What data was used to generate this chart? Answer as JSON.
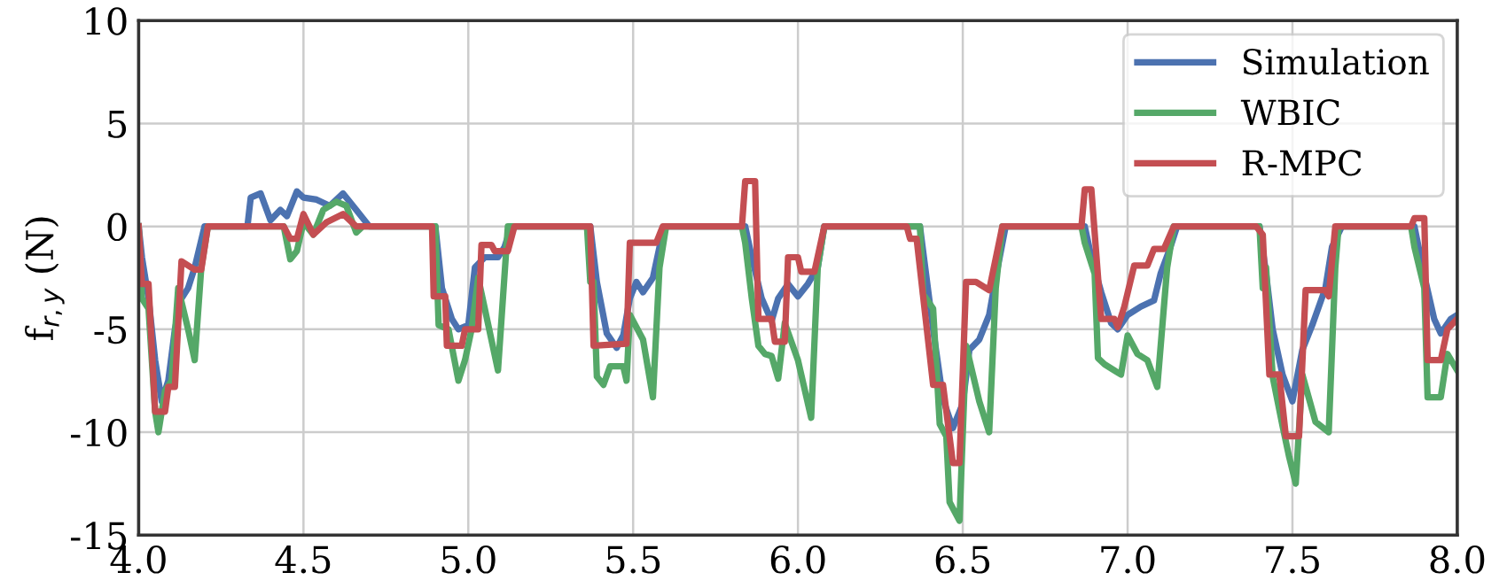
{
  "chart_data": {
    "type": "line",
    "ylabel": "f$_{r,y}$ (N)",
    "xlim": [
      4.0,
      8.0
    ],
    "ylim": [
      -15,
      10
    ],
    "xticks": [
      {
        "value": 4.0,
        "label": "4.0"
      },
      {
        "value": 4.5,
        "label": "4.5"
      },
      {
        "value": 5.0,
        "label": "5.0"
      },
      {
        "value": 5.5,
        "label": "5.5"
      },
      {
        "value": 6.0,
        "label": "6.0"
      },
      {
        "value": 6.5,
        "label": "6.5"
      },
      {
        "value": 7.0,
        "label": "7.0"
      },
      {
        "value": 7.5,
        "label": "7.5"
      },
      {
        "value": 8.0,
        "label": "8.0"
      }
    ],
    "yticks": [
      -15,
      -10,
      -5,
      0,
      5,
      10
    ],
    "grid": true,
    "legend": "top right",
    "line_style": "solid",
    "marker": "none",
    "series": [
      {
        "name": "Simulation",
        "color": "#4c72b0",
        "x": [
          4.0,
          4.01,
          4.03,
          4.05,
          4.07,
          4.09,
          4.11,
          4.13,
          4.15,
          4.17,
          4.2,
          4.33,
          4.34,
          4.37,
          4.4,
          4.43,
          4.45,
          4.48,
          4.5,
          4.54,
          4.58,
          4.62,
          4.66,
          4.7,
          4.9,
          4.92,
          4.95,
          4.97,
          5.0,
          5.02,
          5.05,
          5.09,
          5.11,
          5.13,
          5.37,
          5.39,
          5.42,
          5.45,
          5.47,
          5.49,
          5.51,
          5.53,
          5.56,
          5.58,
          5.6,
          5.84,
          5.86,
          5.89,
          5.92,
          5.94,
          5.97,
          6.0,
          6.03,
          6.06,
          6.08,
          6.37,
          6.39,
          6.41,
          6.44,
          6.47,
          6.5,
          6.52,
          6.55,
          6.58,
          6.6,
          6.63,
          6.87,
          6.89,
          6.92,
          6.95,
          6.97,
          7.0,
          7.04,
          7.08,
          7.1,
          7.13,
          7.15,
          7.4,
          7.42,
          7.44,
          7.47,
          7.5,
          7.53,
          7.56,
          7.6,
          7.62,
          7.65,
          7.87,
          7.9,
          7.93,
          7.95,
          7.98,
          8.0
        ],
        "values": [
          0,
          -1.5,
          -3.5,
          -6.5,
          -8.5,
          -7.5,
          -5,
          -3.5,
          -3,
          -2,
          0,
          0,
          1.4,
          1.6,
          0.3,
          0.8,
          0.5,
          1.7,
          1.4,
          1.3,
          1.0,
          1.6,
          0.8,
          0,
          0,
          -3,
          -4.5,
          -5,
          -4.8,
          -2,
          -1.5,
          -1.5,
          -1,
          0,
          0,
          -2.7,
          -5.2,
          -5.9,
          -5.3,
          -3.5,
          -2.7,
          -3.2,
          -2.5,
          -1,
          0,
          0,
          -1.5,
          -3.5,
          -4.6,
          -3.5,
          -2.8,
          -3.4,
          -2.8,
          -2,
          0,
          0,
          -2.5,
          -5,
          -8.4,
          -9.8,
          -8.6,
          -6,
          -5.5,
          -4.3,
          -2.5,
          0,
          0,
          -1.5,
          -3.2,
          -4.7,
          -5,
          -4.3,
          -3.9,
          -3.6,
          -2.3,
          -1,
          0,
          0,
          -2.3,
          -5,
          -7.2,
          -8.5,
          -6,
          -4.8,
          -3,
          -1,
          0,
          0,
          -2.4,
          -4.5,
          -5.2,
          -4.5,
          -4.3
        ]
      },
      {
        "name": "WBIC",
        "color": "#55a868",
        "x": [
          4.0,
          4.01,
          4.03,
          4.05,
          4.06,
          4.08,
          4.1,
          4.12,
          4.15,
          4.17,
          4.19,
          4.21,
          4.44,
          4.46,
          4.48,
          4.5,
          4.53,
          4.56,
          4.6,
          4.63,
          4.66,
          4.68,
          4.9,
          4.91,
          4.94,
          4.97,
          4.99,
          5.01,
          5.03,
          5.05,
          5.09,
          5.12,
          5.36,
          5.37,
          5.38,
          5.39,
          5.41,
          5.43,
          5.47,
          5.48,
          5.49,
          5.53,
          5.56,
          5.58,
          5.6,
          5.83,
          5.84,
          5.86,
          5.88,
          5.9,
          5.92,
          5.94,
          5.96,
          6.0,
          6.04,
          6.06,
          6.08,
          6.37,
          6.38,
          6.41,
          6.43,
          6.45,
          6.46,
          6.49,
          6.51,
          6.55,
          6.58,
          6.6,
          6.62,
          6.86,
          6.87,
          6.9,
          6.91,
          6.93,
          6.96,
          6.98,
          7.0,
          7.03,
          7.06,
          7.09,
          7.12,
          7.14,
          7.4,
          7.41,
          7.42,
          7.44,
          7.47,
          7.49,
          7.51,
          7.53,
          7.57,
          7.61,
          7.63,
          7.64,
          7.86,
          7.87,
          7.9,
          7.91,
          7.95,
          7.97,
          8.0
        ],
        "values": [
          0,
          -3.5,
          -4,
          -9,
          -10,
          -8,
          -7.5,
          -3,
          -5,
          -6.5,
          -2,
          0,
          0,
          -1.6,
          -1.2,
          0.2,
          -0.4,
          0.8,
          1.2,
          1.0,
          -0.3,
          0,
          0,
          -4.8,
          -5,
          -7.5,
          -6.5,
          -5,
          -2.5,
          -4,
          -7,
          0,
          0,
          -2.7,
          -2.7,
          -7.3,
          -7.7,
          -6.8,
          -6.8,
          -7.5,
          -4.3,
          -5.5,
          -8.3,
          -2,
          0,
          0,
          -0.8,
          -3.5,
          -5.8,
          -6.2,
          -6.3,
          -7.4,
          -4.7,
          -6.5,
          -9.3,
          -2,
          0,
          0,
          -3.3,
          -4,
          -9.6,
          -10.2,
          -13.4,
          -14.3,
          -5.8,
          -8.5,
          -10,
          -3,
          0,
          0,
          -0.8,
          -2.3,
          -6.4,
          -6.7,
          -7,
          -7.2,
          -5.3,
          -6.2,
          -6.5,
          -7.8,
          -2,
          0,
          0,
          -3,
          -2,
          -7.3,
          -9.7,
          -11.2,
          -12.5,
          -7.2,
          -9.5,
          -10,
          -2,
          0,
          0,
          -1,
          -3,
          -8.3,
          -8.3,
          -6.2,
          -7
        ]
      },
      {
        "name": "R-MPC",
        "color": "#c44e52",
        "x": [
          4.0,
          4.01,
          4.03,
          4.05,
          4.08,
          4.09,
          4.11,
          4.13,
          4.17,
          4.19,
          4.21,
          4.44,
          4.46,
          4.48,
          4.5,
          4.53,
          4.57,
          4.62,
          4.66,
          4.89,
          4.895,
          4.93,
          4.935,
          4.98,
          4.99,
          5.03,
          5.04,
          5.07,
          5.08,
          5.12,
          5.14,
          5.37,
          5.38,
          5.48,
          5.49,
          5.57,
          5.59,
          5.83,
          5.84,
          5.87,
          5.88,
          5.92,
          5.93,
          5.96,
          5.97,
          6.0,
          6.01,
          6.05,
          6.08,
          6.33,
          6.34,
          6.36,
          6.41,
          6.44,
          6.47,
          6.49,
          6.51,
          6.54,
          6.58,
          6.62,
          6.86,
          6.87,
          6.89,
          6.92,
          6.96,
          6.97,
          6.99,
          7.02,
          7.06,
          7.08,
          7.11,
          7.14,
          7.39,
          7.41,
          7.43,
          7.46,
          7.48,
          7.52,
          7.54,
          7.6,
          7.61,
          7.63,
          7.86,
          7.87,
          7.9,
          7.91,
          7.95,
          7.97,
          8.0
        ],
        "values": [
          0,
          -2.8,
          -2.8,
          -9.0,
          -9.0,
          -7.8,
          -7.8,
          -1.7,
          -2.1,
          -2.1,
          0,
          0,
          -0.6,
          -0.6,
          0.6,
          -0.4,
          0.2,
          0.6,
          0,
          0,
          -3.4,
          -3.4,
          -5.8,
          -5.8,
          -5.0,
          -5.0,
          -0.9,
          -0.9,
          -1.2,
          -1.2,
          0,
          0,
          -5.8,
          -5.7,
          -0.8,
          -0.8,
          0,
          0,
          2.2,
          2.2,
          -4.5,
          -4.5,
          -5.6,
          -5.6,
          -1.5,
          -1.5,
          -2.2,
          -2.2,
          0,
          0,
          -0.6,
          -0.6,
          -7.7,
          -7.7,
          -11.5,
          -11.5,
          -2.7,
          -2.7,
          -3.1,
          0,
          0,
          1.8,
          1.8,
          -4.5,
          -4.5,
          -4.9,
          -3.9,
          -1.9,
          -1.9,
          -1.1,
          -1.1,
          0,
          0,
          -0.4,
          -7.2,
          -7.2,
          -10.2,
          -10.2,
          -3.1,
          -3.1,
          -3.4,
          0,
          0,
          0.4,
          0.4,
          -6.5,
          -6.5,
          -5.0,
          -4.5
        ]
      }
    ]
  }
}
